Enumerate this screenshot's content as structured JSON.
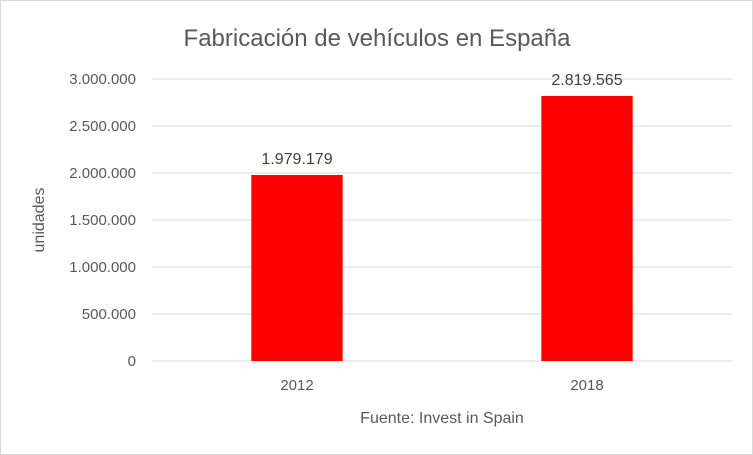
{
  "chart_data": {
    "type": "bar",
    "title": "Fabricación de vehículos en España",
    "xlabel": "Fuente: Invest in Spain",
    "ylabel": "unidades",
    "categories": [
      "2012",
      "2018"
    ],
    "values": [
      1979179,
      2819565
    ],
    "data_labels": [
      "1.979.179",
      "2.819.565"
    ],
    "ylim": [
      0,
      3000000
    ],
    "yticks": [
      0,
      500000,
      1000000,
      1500000,
      2000000,
      2500000,
      3000000
    ],
    "ytick_labels": [
      "0",
      "500.000",
      "1.000.000",
      "1.500.000",
      "2.000.000",
      "2.500.000",
      "3.000.000"
    ],
    "grid": true,
    "legend": "none",
    "bar_color": "#ff0000"
  }
}
